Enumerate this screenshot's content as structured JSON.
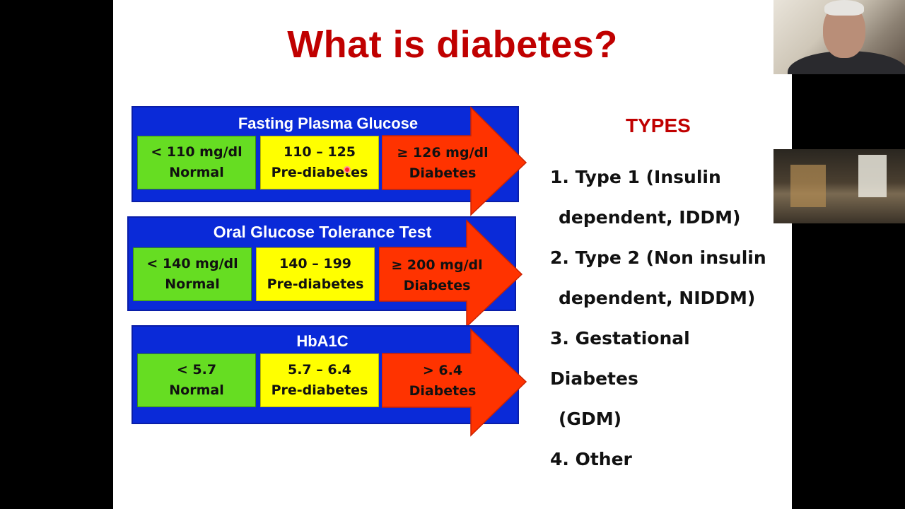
{
  "slide": {
    "title": "What is diabetes?",
    "panels": [
      {
        "title": "Fasting Plasma Glucose",
        "normal": [
          "< 110 mg/dl",
          "Normal"
        ],
        "pre": [
          "110 – 125",
          "Pre-diabetes"
        ],
        "diabetes": [
          "≥ 126 mg/dl",
          "Diabetes"
        ]
      },
      {
        "title": "Oral Glucose Tolerance Test",
        "normal": [
          "< 140 mg/dl",
          "Normal"
        ],
        "pre": [
          "140 – 199",
          "Pre-diabetes"
        ],
        "diabetes": [
          "≥ 200 mg/dl",
          "Diabetes"
        ]
      },
      {
        "title": "HbA1C",
        "normal": [
          "< 5.7",
          "Normal"
        ],
        "pre": [
          "5.7 – 6.4",
          "Pre-diabetes"
        ],
        "diabetes": [
          "> 6.4",
          "Diabetes"
        ]
      }
    ],
    "types": {
      "heading": "TYPES",
      "items": [
        [
          "1. Type 1 (Insulin",
          "dependent, IDDM)"
        ],
        [
          "2. Type 2 (Non insulin",
          "dependent, NIDDM)"
        ],
        [
          "3. Gestational Diabetes",
          "(GDM)"
        ],
        [
          "4. Other",
          ""
        ]
      ]
    }
  },
  "colors": {
    "title": "#c00000",
    "panel_blue": "#0a2ad8",
    "normal_green": "#66dd22",
    "pre_yellow": "#ffff00",
    "diabetes_red": "#ff3300"
  },
  "video_feeds": [
    "presenter",
    "participant"
  ]
}
